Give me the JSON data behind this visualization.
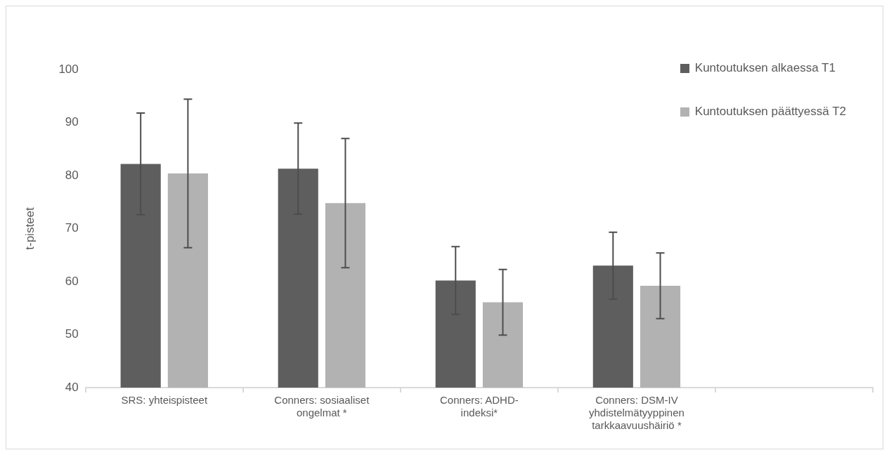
{
  "chart_data": {
    "type": "bar",
    "categories": [
      "SRS: yhteispisteet",
      "Conners: sosiaaliset ongelmat *",
      "Conners: ADHD-indeksi*",
      "Conners: DSM-IV yhdistelmätyyppinen tarkkaavuushäiriö *",
      null
    ],
    "ylabel": "t-pisteet",
    "series": [
      {
        "name": "Kuntoutuksen alkaessa T1",
        "color": "#5e5e5e",
        "values": [
          82.2,
          81.3,
          60.2,
          63.0,
          null
        ],
        "errors": [
          9.6,
          8.6,
          6.4,
          6.3,
          null
        ]
      },
      {
        "name": "Kuntoutuksen päättyessä T2",
        "color": "#b2b2b2",
        "values": [
          80.4,
          74.8,
          56.1,
          59.2,
          null
        ],
        "errors": [
          14.0,
          12.2,
          6.2,
          6.2,
          null
        ]
      }
    ],
    "ylim": [
      40,
      100
    ],
    "yticks": [
      40,
      50,
      60,
      70,
      80,
      90,
      100
    ],
    "grid": false,
    "legend": "top right"
  }
}
